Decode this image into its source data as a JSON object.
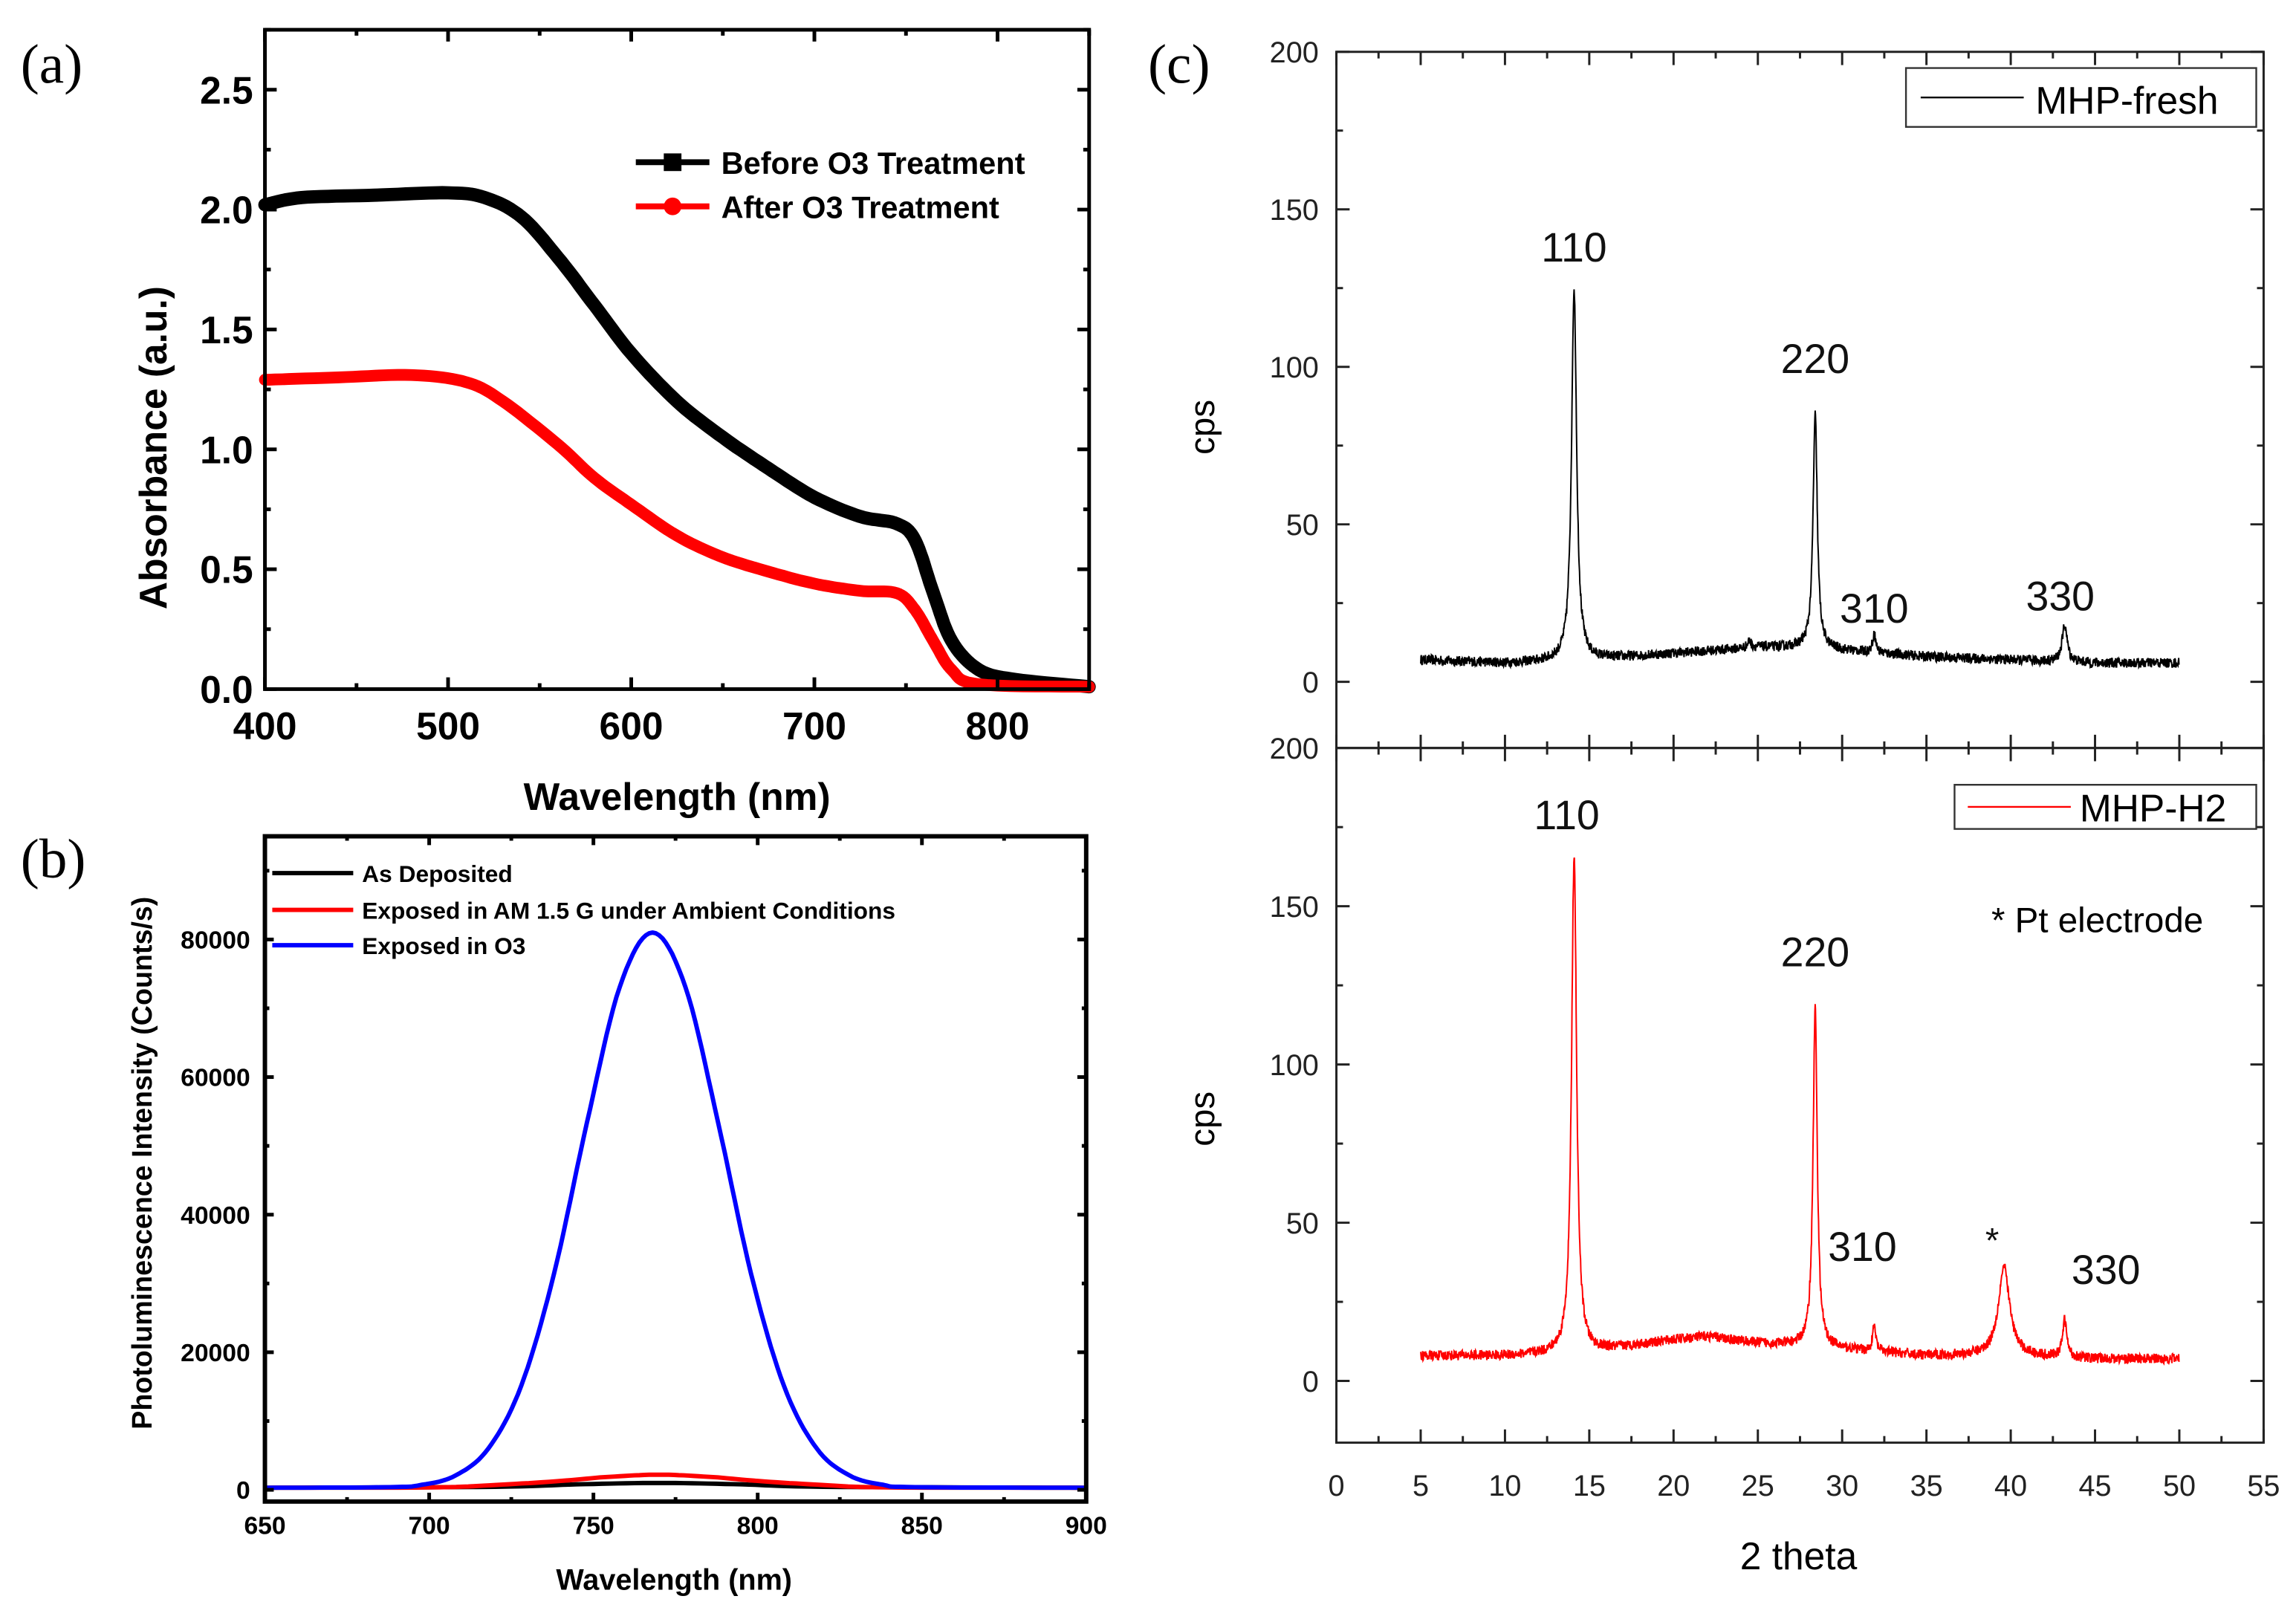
{
  "chart_data": [
    {
      "panel_label": "(a)",
      "type": "line",
      "xlabel": "Wavelength (nm)",
      "ylabel": "Absorbance (a.u.)",
      "xlim": [
        400,
        850
      ],
      "ylim": [
        0,
        2.75
      ],
      "xticks": [
        400,
        500,
        600,
        700,
        800
      ],
      "yticks": [
        0.0,
        0.5,
        1.0,
        1.5,
        2.0,
        2.5
      ],
      "ytick_labels": [
        "0.0",
        "0.5",
        "1.0",
        "1.5",
        "2.0",
        "2.5"
      ],
      "legend_position": "top-right",
      "series": [
        {
          "name": "Before O3 Treatment",
          "color": "#000000",
          "marker": "square",
          "points": [
            [
              400,
              2.02
            ],
            [
              420,
              2.05
            ],
            [
              460,
              2.06
            ],
            [
              500,
              2.07
            ],
            [
              520,
              2.05
            ],
            [
              540,
              1.97
            ],
            [
              560,
              1.8
            ],
            [
              580,
              1.6
            ],
            [
              600,
              1.4
            ],
            [
              625,
              1.2
            ],
            [
              650,
              1.05
            ],
            [
              675,
              0.92
            ],
            [
              700,
              0.8
            ],
            [
              725,
              0.72
            ],
            [
              745,
              0.69
            ],
            [
              755,
              0.62
            ],
            [
              765,
              0.4
            ],
            [
              775,
              0.2
            ],
            [
              790,
              0.08
            ],
            [
              810,
              0.04
            ],
            [
              850,
              0.01
            ]
          ]
        },
        {
          "name": "After O3 Treatment",
          "color": "#ff0000",
          "marker": "circle",
          "points": [
            [
              400,
              1.29
            ],
            [
              440,
              1.3
            ],
            [
              480,
              1.31
            ],
            [
              510,
              1.28
            ],
            [
              530,
              1.2
            ],
            [
              560,
              1.02
            ],
            [
              580,
              0.88
            ],
            [
              600,
              0.77
            ],
            [
              625,
              0.64
            ],
            [
              650,
              0.55
            ],
            [
              675,
              0.49
            ],
            [
              700,
              0.44
            ],
            [
              725,
              0.41
            ],
            [
              745,
              0.4
            ],
            [
              755,
              0.33
            ],
            [
              765,
              0.2
            ],
            [
              775,
              0.08
            ],
            [
              790,
              0.02
            ],
            [
              850,
              0.01
            ]
          ]
        }
      ]
    },
    {
      "panel_label": "(b)",
      "type": "line",
      "xlabel": "Wavelength (nm)",
      "ylabel": "Photoluminescence Intensity (Counts/s)",
      "xlim": [
        650,
        900
      ],
      "ylim": [
        -1700,
        95000
      ],
      "xticks": [
        650,
        700,
        750,
        800,
        850,
        900
      ],
      "yticks": [
        0,
        20000,
        40000,
        60000,
        80000
      ],
      "legend_position": "top-left",
      "series": [
        {
          "name": "As Deposited",
          "color": "#000000",
          "points": [
            [
              650,
              300
            ],
            [
              720,
              450
            ],
            [
              745,
              800
            ],
            [
              770,
              1000
            ],
            [
              795,
              800
            ],
            [
              820,
              450
            ],
            [
              900,
              300
            ]
          ]
        },
        {
          "name": "Exposed in AM 1.5 G under Ambient Conditions",
          "color": "#ff0000",
          "points": [
            [
              650,
              300
            ],
            [
              700,
              350
            ],
            [
              720,
              700
            ],
            [
              740,
              1300
            ],
            [
              755,
              1900
            ],
            [
              770,
              2200
            ],
            [
              785,
              1900
            ],
            [
              800,
              1300
            ],
            [
              820,
              700
            ],
            [
              840,
              350
            ],
            [
              900,
              300
            ]
          ]
        },
        {
          "name": "Exposed in O3",
          "color": "#0000ff",
          "points": [
            [
              650,
              300
            ],
            [
              688,
              390
            ],
            [
              698,
              750
            ],
            [
              708,
              2080
            ],
            [
              718,
              6000
            ],
            [
              728,
              15100
            ],
            [
              738,
              31400
            ],
            [
              748,
              53300
            ],
            [
              758,
              73100
            ],
            [
              768,
              81000
            ],
            [
              778,
              73100
            ],
            [
              788,
              53300
            ],
            [
              798,
              31400
            ],
            [
              808,
              15100
            ],
            [
              818,
              6000
            ],
            [
              828,
              2080
            ],
            [
              838,
              750
            ],
            [
              848,
              390
            ],
            [
              900,
              300
            ]
          ]
        }
      ]
    },
    {
      "panel_label": "(c)",
      "type": "line",
      "xlabel": "2 theta",
      "ylabel": "cps",
      "xlim": [
        0,
        55
      ],
      "xticks": [
        0,
        5,
        10,
        15,
        20,
        25,
        30,
        35,
        40,
        45,
        50,
        55
      ],
      "subplots": [
        {
          "name": "MHP-fresh",
          "color": "#000000",
          "ylim": [
            -21,
            200
          ],
          "yticks": [
            0,
            50,
            100,
            150,
            200
          ],
          "legend_position": "top-right",
          "baseline": [
            [
              5,
              7
            ],
            [
              10,
              6
            ],
            [
              15,
              7
            ],
            [
              20,
              9
            ],
            [
              25,
              11
            ],
            [
              28,
              11
            ],
            [
              30,
              10
            ],
            [
              35,
              8
            ],
            [
              40,
              7
            ],
            [
              45,
              6
            ],
            [
              50,
              6
            ]
          ],
          "peaks": [
            {
              "x": 14.1,
              "height": 125,
              "width": 0.18,
              "label": "110"
            },
            {
              "x": 24.5,
              "height": 13,
              "width": 0.12,
              "label": ""
            },
            {
              "x": 28.4,
              "height": 85,
              "width": 0.15,
              "label": "220"
            },
            {
              "x": 31.9,
              "height": 15,
              "width": 0.12,
              "label": "310"
            },
            {
              "x": 43.2,
              "height": 18,
              "width": 0.18,
              "label": "330"
            }
          ]
        },
        {
          "name": "MHP-H2",
          "color": "#ff0000",
          "ylim": [
            -19.5,
            200
          ],
          "yticks": [
            0,
            50,
            100,
            150,
            200
          ],
          "legend_position": "top-right",
          "annotation": "* Pt electrode",
          "baseline": [
            [
              5,
              8
            ],
            [
              10,
              8
            ],
            [
              15,
              9
            ],
            [
              20,
              13
            ],
            [
              22,
              14
            ],
            [
              25,
              12
            ],
            [
              28,
              11
            ],
            [
              30,
              10
            ],
            [
              35,
              8
            ],
            [
              40,
              8
            ],
            [
              45,
              7
            ],
            [
              50,
              7
            ]
          ],
          "peaks": [
            {
              "x": 14.1,
              "height": 166,
              "width": 0.18,
              "label": "110"
            },
            {
              "x": 28.4,
              "height": 118,
              "width": 0.15,
              "label": "220"
            },
            {
              "x": 31.9,
              "height": 17,
              "width": 0.12,
              "label": "310"
            },
            {
              "x": 39.6,
              "height": 36,
              "width": 0.4,
              "label": "*"
            },
            {
              "x": 43.2,
              "height": 19,
              "width": 0.15,
              "label": "330"
            }
          ]
        }
      ]
    }
  ]
}
